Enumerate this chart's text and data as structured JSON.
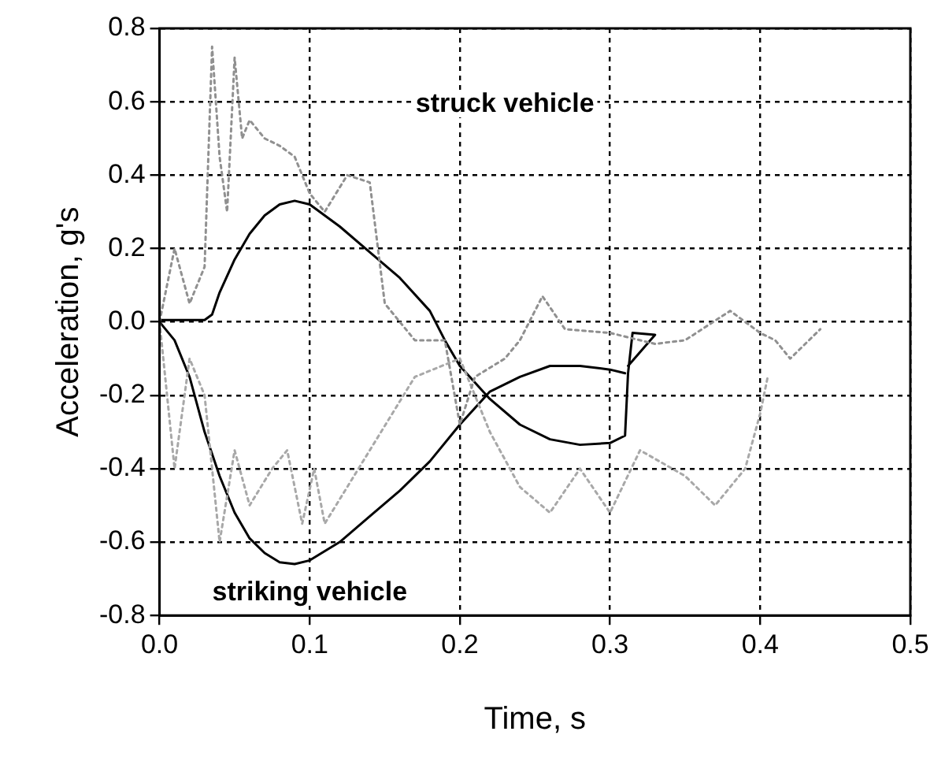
{
  "chart_data": {
    "type": "line",
    "xlabel": "Time, s",
    "ylabel": "Acceleration, g's",
    "xlim": [
      0,
      0.5
    ],
    "xticks": [
      {
        "value": 0,
        "label": "0.0"
      },
      0.1,
      0.2,
      0.3,
      0.4,
      0.5
    ],
    "ylim": [
      -0.8,
      0.8
    ],
    "yticks": [
      -0.8,
      -0.6,
      -0.4,
      -0.2,
      {
        "value": 0,
        "label": "0.0"
      },
      0.2,
      0.4,
      0.6,
      0.8
    ],
    "grid": true,
    "legend": false,
    "marker": "none",
    "series": [
      {
        "color": "#909090",
        "line_style": "dotted",
        "x": [
          0,
          0.01,
          0.02,
          0.03,
          0.035,
          0.04,
          0.045,
          0.05,
          0.055,
          0.06,
          0.07,
          0.08,
          0.09,
          0.1,
          0.11,
          0.125,
          0.14,
          0.15,
          0.16,
          0.17,
          0.19,
          0.2,
          0.21,
          0.23,
          0.24,
          0.255,
          0.27,
          0.3,
          0.33,
          0.35,
          0.38,
          0.4,
          0.41,
          0.42,
          0.43,
          0.44
        ],
        "values": [
          0,
          0.2,
          0.05,
          0.15,
          0.75,
          0.45,
          0.3,
          0.72,
          0.5,
          0.55,
          0.5,
          0.48,
          0.45,
          0.35,
          0.3,
          0.4,
          0.38,
          0.05,
          0,
          -0.05,
          -0.05,
          -0.28,
          -0.15,
          -0.1,
          -0.05,
          0.07,
          -0.02,
          -0.03,
          -0.06,
          -0.05,
          0.03,
          -0.03,
          -0.05,
          -0.1,
          -0.06,
          -0.02
        ]
      },
      {
        "color": "#a8a8a8",
        "line_style": "dotted",
        "x": [
          0,
          0.01,
          0.02,
          0.03,
          0.04,
          0.05,
          0.06,
          0.075,
          0.085,
          0.095,
          0.103,
          0.11,
          0.14,
          0.17,
          0.2,
          0.22,
          0.24,
          0.26,
          0.28,
          0.3,
          0.32,
          0.35,
          0.37,
          0.39,
          0.4,
          0.405
        ],
        "values": [
          0,
          -0.4,
          -0.1,
          -0.2,
          -0.6,
          -0.35,
          -0.5,
          -0.4,
          -0.35,
          -0.55,
          -0.4,
          -0.55,
          -0.35,
          -0.15,
          -0.1,
          -0.3,
          -0.45,
          -0.52,
          -0.4,
          -0.52,
          -0.35,
          -0.42,
          -0.5,
          -0.4,
          -0.25,
          -0.15
        ]
      },
      {
        "color": "#000000",
        "line_style": "solid",
        "x": [
          0,
          0.03,
          0.035,
          0.04,
          0.05,
          0.06,
          0.07,
          0.08,
          0.09,
          0.1,
          0.12,
          0.14,
          0.16,
          0.18,
          0.19,
          0.2,
          0.22,
          0.24,
          0.26,
          0.28,
          0.3,
          0.31,
          0.312,
          0.315,
          0.33,
          0.312
        ],
        "values": [
          0.005,
          0.005,
          0.02,
          0.08,
          0.17,
          0.24,
          0.29,
          0.32,
          0.33,
          0.32,
          0.26,
          0.19,
          0.12,
          0.03,
          -0.05,
          -0.12,
          -0.21,
          -0.28,
          -0.32,
          -0.335,
          -0.33,
          -0.31,
          -0.14,
          -0.03,
          -0.035,
          -0.12
        ]
      },
      {
        "color": "#000000",
        "line_style": "solid",
        "x": [
          0,
          0.01,
          0.02,
          0.03,
          0.04,
          0.05,
          0.06,
          0.07,
          0.08,
          0.09,
          0.1,
          0.12,
          0.14,
          0.16,
          0.18,
          0.2,
          0.22,
          0.24,
          0.26,
          0.28,
          0.3,
          0.31
        ],
        "values": [
          0,
          -0.05,
          -0.15,
          -0.3,
          -0.42,
          -0.52,
          -0.59,
          -0.63,
          -0.655,
          -0.66,
          -0.65,
          -0.6,
          -0.53,
          -0.46,
          -0.38,
          -0.28,
          -0.19,
          -0.15,
          -0.12,
          -0.12,
          -0.13,
          -0.14
        ]
      }
    ],
    "annotations": [
      "struck vehicle",
      "striking vehicle"
    ]
  }
}
